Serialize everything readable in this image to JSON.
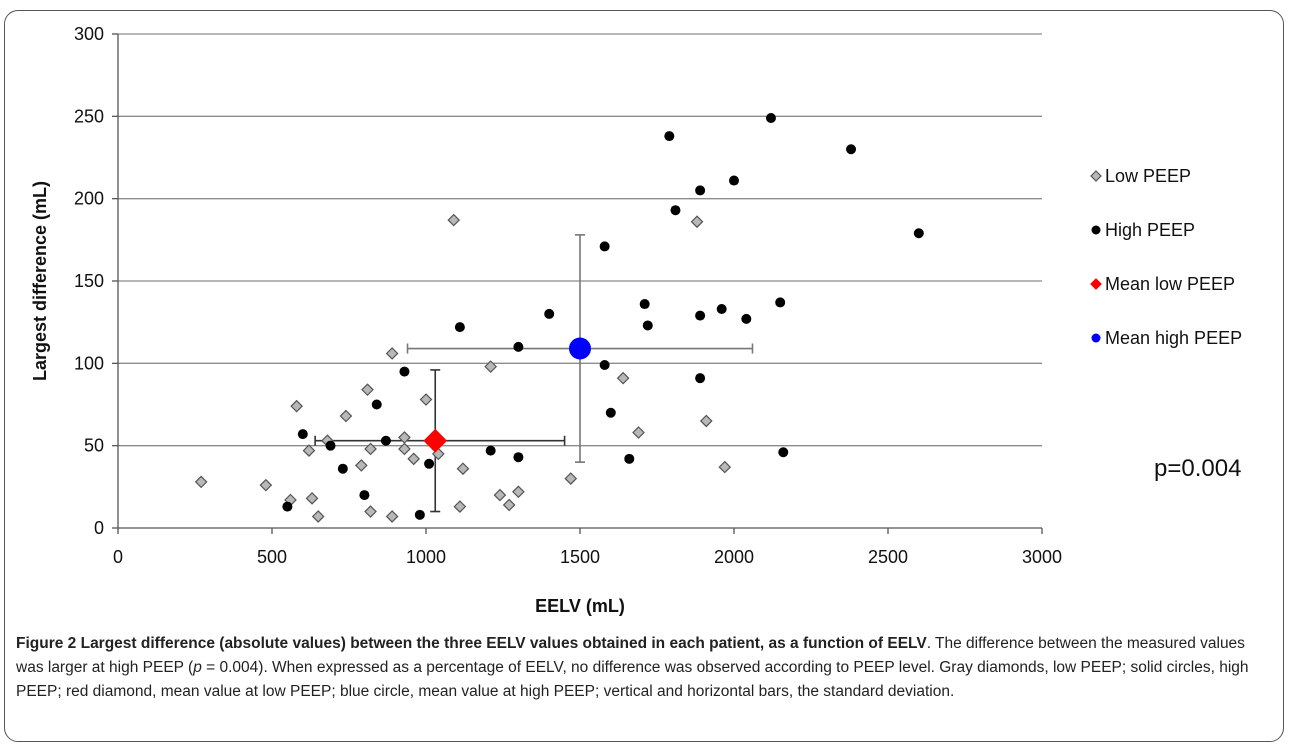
{
  "chart_data": {
    "type": "scatter",
    "xlabel": "EELV (mL)",
    "ylabel": "Largest difference (mL)",
    "xlim": [
      0,
      3000
    ],
    "ylim": [
      0,
      300
    ],
    "xticks": [
      0,
      500,
      1000,
      1500,
      2000,
      2500,
      3000
    ],
    "yticks": [
      0,
      50,
      100,
      150,
      200,
      250,
      300
    ],
    "grid": "horizontal",
    "legend_position": "right",
    "annotation": "p=0.004",
    "series": [
      {
        "name": "Low PEEP",
        "marker": "diamond",
        "color": "#b8b8b8",
        "points": [
          [
            270,
            28
          ],
          [
            480,
            26
          ],
          [
            560,
            17
          ],
          [
            580,
            74
          ],
          [
            620,
            47
          ],
          [
            630,
            18
          ],
          [
            650,
            7
          ],
          [
            680,
            53
          ],
          [
            740,
            68
          ],
          [
            790,
            38
          ],
          [
            810,
            84
          ],
          [
            820,
            48
          ],
          [
            820,
            10
          ],
          [
            890,
            106
          ],
          [
            890,
            7
          ],
          [
            930,
            48
          ],
          [
            930,
            55
          ],
          [
            960,
            42
          ],
          [
            1000,
            78
          ],
          [
            1040,
            45
          ],
          [
            1090,
            187
          ],
          [
            1110,
            13
          ],
          [
            1120,
            36
          ],
          [
            1210,
            98
          ],
          [
            1240,
            20
          ],
          [
            1270,
            14
          ],
          [
            1300,
            22
          ],
          [
            1470,
            30
          ],
          [
            1640,
            91
          ],
          [
            1690,
            58
          ],
          [
            1880,
            186
          ],
          [
            1910,
            65
          ],
          [
            1970,
            37
          ]
        ]
      },
      {
        "name": "High PEEP",
        "marker": "circle",
        "color": "#000000",
        "points": [
          [
            550,
            13
          ],
          [
            600,
            57
          ],
          [
            690,
            50
          ],
          [
            730,
            36
          ],
          [
            800,
            20
          ],
          [
            840,
            75
          ],
          [
            870,
            53
          ],
          [
            930,
            95
          ],
          [
            980,
            8
          ],
          [
            1010,
            39
          ],
          [
            1110,
            122
          ],
          [
            1210,
            47
          ],
          [
            1300,
            110
          ],
          [
            1300,
            43
          ],
          [
            1400,
            130
          ],
          [
            1580,
            171
          ],
          [
            1580,
            99
          ],
          [
            1600,
            70
          ],
          [
            1660,
            42
          ],
          [
            1710,
            136
          ],
          [
            1720,
            123
          ],
          [
            1790,
            238
          ],
          [
            1810,
            193
          ],
          [
            1890,
            205
          ],
          [
            1890,
            129
          ],
          [
            1890,
            91
          ],
          [
            1960,
            133
          ],
          [
            2000,
            211
          ],
          [
            2040,
            127
          ],
          [
            2120,
            249
          ],
          [
            2150,
            137
          ],
          [
            2160,
            46
          ],
          [
            2380,
            230
          ],
          [
            2600,
            179
          ]
        ]
      },
      {
        "name": "Mean low PEEP",
        "marker": "diamond",
        "color": "#ff0000",
        "points": [
          [
            1030,
            53
          ]
        ],
        "xerr": [
          [
            640,
            1450
          ]
        ],
        "yerr": [
          [
            10,
            96
          ]
        ]
      },
      {
        "name": "Mean high PEEP",
        "marker": "circle",
        "color": "#0000ff",
        "points": [
          [
            1500,
            109
          ]
        ],
        "xerr": [
          [
            940,
            2060
          ]
        ],
        "yerr": [
          [
            40,
            178
          ]
        ]
      }
    ]
  },
  "caption": {
    "label": "Figure 2 Largest difference (absolute values) between the three EELV values obtained in each patient, as a function of EELV",
    "text_before_p": ". The difference between the measured values was larger at high PEEP (",
    "p_symbol": "p",
    "text_after_p": " = 0.004). When expressed as a percentage of EELV, no difference was observed according to PEEP level. Gray diamonds, low PEEP; solid circles, high PEEP; red diamond, mean value at low PEEP; blue circle, mean value at high PEEP; vertical and horizontal bars, the standard deviation."
  }
}
